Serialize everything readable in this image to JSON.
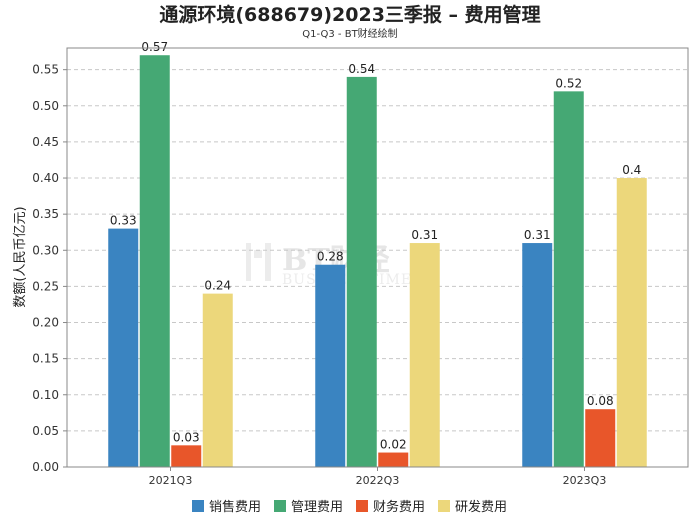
{
  "chart_data": {
    "type": "bar",
    "title": "通源环境(688679)2023三季报 – 费用管理",
    "subtitle": "Q1-Q3 - BT财经绘制",
    "xlabel": "",
    "ylabel": "数额(人民币亿元)",
    "ylim": [
      0,
      0.58
    ],
    "yticks": [
      0.0,
      0.05,
      0.1,
      0.15,
      0.2,
      0.25,
      0.3,
      0.35,
      0.4,
      0.45,
      0.5,
      0.55
    ],
    "ytick_labels": [
      "0.00",
      "0.05",
      "0.10",
      "0.15",
      "0.20",
      "0.25",
      "0.30",
      "0.35",
      "0.40",
      "0.45",
      "0.50",
      "0.55"
    ],
    "grid": true,
    "legend_position": "bottom",
    "categories": [
      "2021Q3",
      "2022Q3",
      "2023Q3"
    ],
    "series": [
      {
        "name": "销售费用",
        "color": "#3a84c1",
        "values": [
          0.33,
          0.28,
          0.31
        ],
        "labels": [
          "0.33",
          "0.28",
          "0.31"
        ]
      },
      {
        "name": "管理费用",
        "color": "#45a874",
        "values": [
          0.57,
          0.54,
          0.52
        ],
        "labels": [
          "0.57",
          "0.54",
          "0.52"
        ]
      },
      {
        "name": "财务费用",
        "color": "#e8562a",
        "values": [
          0.03,
          0.02,
          0.08
        ],
        "labels": [
          "0.03",
          "0.02",
          "0.08"
        ]
      },
      {
        "name": "研发费用",
        "color": "#ecd77b",
        "values": [
          0.24,
          0.31,
          0.4
        ],
        "labels": [
          "0.24",
          "0.31",
          "0.4"
        ]
      }
    ]
  },
  "watermark": {
    "brand": "BT财经",
    "tagline": "BUSINESSTIMES"
  }
}
